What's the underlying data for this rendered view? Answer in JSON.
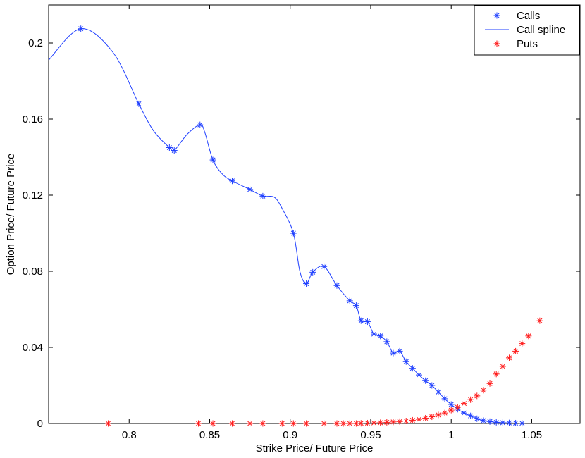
{
  "chart_data": {
    "type": "line",
    "xlabel": "Strike Price/ Future Price",
    "ylabel": "Option Price/ Future Price",
    "xlim": [
      0.75,
      1.08
    ],
    "ylim": [
      0,
      0.22
    ],
    "xticks": [
      0.8,
      0.85,
      0.9,
      0.95,
      1,
      1.05
    ],
    "xtick_labels": [
      "0.8",
      "0.85",
      "0.9",
      "0.95",
      "1",
      "1.05"
    ],
    "yticks": [
      0,
      0.04,
      0.08,
      0.12,
      0.16,
      0.2
    ],
    "ytick_labels": [
      "0",
      "0.04",
      "0.08",
      "0.12",
      "0.16",
      "0.2"
    ],
    "grid": false,
    "legend_position": "top-right",
    "colors": {
      "calls": "#1f3fff",
      "puts": "#ff1a1a",
      "axis": "#000000"
    },
    "series": [
      {
        "name": "Calls",
        "style": "markers",
        "marker": "asterisk",
        "color": "#1f3fff",
        "x": [
          0.77,
          0.806,
          0.825,
          0.828,
          0.844,
          0.852,
          0.864,
          0.875,
          0.883,
          0.902,
          0.91,
          0.914,
          0.921,
          0.929,
          0.937,
          0.941,
          0.944,
          0.948,
          0.952,
          0.956,
          0.96,
          0.964,
          0.968,
          0.972,
          0.976,
          0.98,
          0.984,
          0.988,
          0.992,
          0.996,
          1.0,
          1.004,
          1.008,
          1.012,
          1.016,
          1.02,
          1.024,
          1.028,
          1.032,
          1.036,
          1.04,
          1.044
        ],
        "y": [
          0.2075,
          0.168,
          0.145,
          0.1435,
          0.157,
          0.1385,
          0.1275,
          0.123,
          0.1195,
          0.1,
          0.0735,
          0.0795,
          0.0825,
          0.0725,
          0.0645,
          0.062,
          0.054,
          0.0535,
          0.047,
          0.046,
          0.043,
          0.037,
          0.038,
          0.0325,
          0.029,
          0.0255,
          0.0225,
          0.02,
          0.0165,
          0.013,
          0.01,
          0.0075,
          0.0055,
          0.004,
          0.0025,
          0.0015,
          0.001,
          0.0006,
          0.0004,
          0.0003,
          0.0002,
          0.0001
        ]
      },
      {
        "name": "Call spline",
        "style": "line",
        "color": "#1f3fff",
        "x": [
          0.75,
          0.77,
          0.79,
          0.806,
          0.815,
          0.825,
          0.828,
          0.836,
          0.844,
          0.847,
          0.852,
          0.858,
          0.864,
          0.875,
          0.883,
          0.89,
          0.895,
          0.902,
          0.906,
          0.91,
          0.914,
          0.921,
          0.929,
          0.937,
          0.941,
          0.944,
          0.948,
          0.952,
          0.956,
          0.96,
          0.964,
          0.968,
          0.972,
          0.976,
          0.98,
          0.984,
          0.988,
          0.992,
          0.996,
          1.0,
          1.004,
          1.008,
          1.012,
          1.016,
          1.02,
          1.024,
          1.028,
          1.032,
          1.036,
          1.04,
          1.044
        ],
        "y": [
          0.191,
          0.2075,
          0.195,
          0.168,
          0.154,
          0.145,
          0.1435,
          0.152,
          0.157,
          0.153,
          0.1385,
          0.131,
          0.1275,
          0.123,
          0.1195,
          0.119,
          0.113,
          0.1,
          0.08,
          0.0735,
          0.0795,
          0.0825,
          0.0725,
          0.0645,
          0.062,
          0.054,
          0.0535,
          0.047,
          0.046,
          0.043,
          0.037,
          0.038,
          0.0325,
          0.029,
          0.0255,
          0.0225,
          0.02,
          0.0165,
          0.013,
          0.01,
          0.0075,
          0.0055,
          0.004,
          0.0025,
          0.0015,
          0.001,
          0.0006,
          0.0004,
          0.0003,
          0.0002,
          0.0001
        ]
      },
      {
        "name": "Puts",
        "style": "markers",
        "marker": "asterisk",
        "color": "#ff1a1a",
        "x": [
          0.787,
          0.843,
          0.852,
          0.864,
          0.875,
          0.883,
          0.895,
          0.902,
          0.91,
          0.921,
          0.929,
          0.933,
          0.937,
          0.941,
          0.944,
          0.948,
          0.952,
          0.956,
          0.96,
          0.964,
          0.968,
          0.972,
          0.976,
          0.98,
          0.984,
          0.988,
          0.992,
          0.996,
          1.0,
          1.004,
          1.008,
          1.012,
          1.016,
          1.02,
          1.024,
          1.028,
          1.032,
          1.036,
          1.04,
          1.044,
          1.048,
          1.055
        ],
        "y": [
          0,
          0,
          0,
          0,
          0,
          0,
          0,
          0,
          0,
          0,
          0,
          0,
          0,
          0,
          0.0001,
          0.0002,
          0.0003,
          0.0004,
          0.0006,
          0.0008,
          0.001,
          0.0013,
          0.0017,
          0.0022,
          0.0028,
          0.0035,
          0.0045,
          0.0055,
          0.007,
          0.0085,
          0.0105,
          0.0125,
          0.0145,
          0.0175,
          0.021,
          0.026,
          0.03,
          0.0345,
          0.038,
          0.042,
          0.046,
          0.054
        ]
      }
    ]
  }
}
